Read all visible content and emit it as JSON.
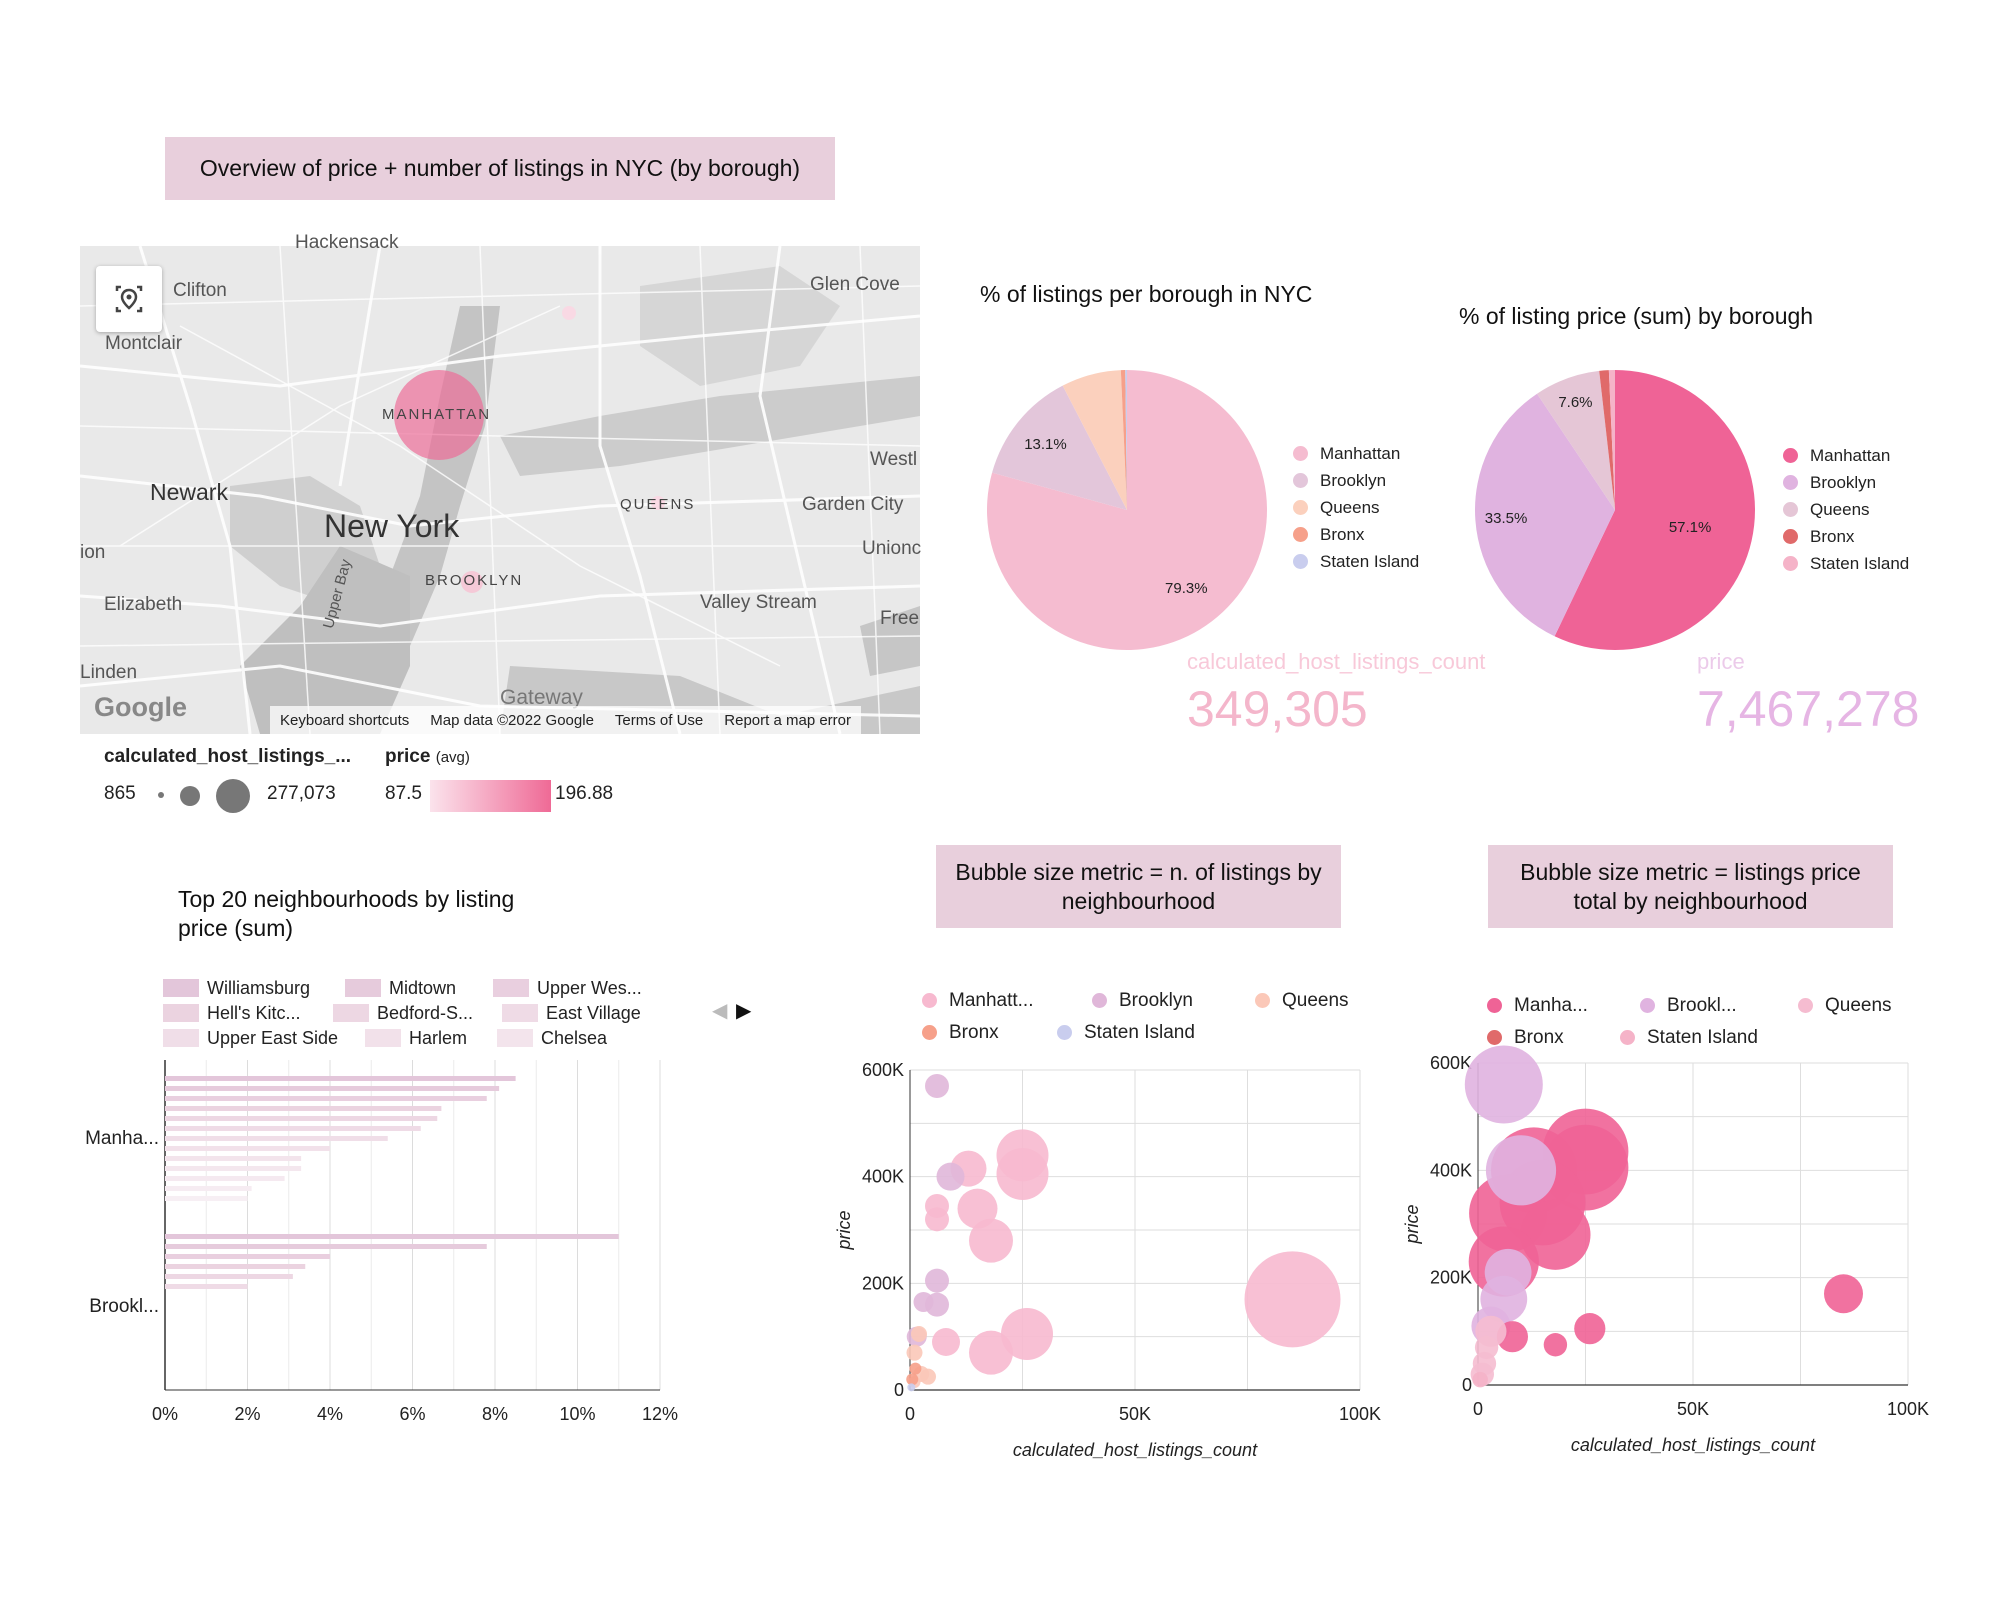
{
  "header": {
    "title": "Overview of price + number of listings in NYC (by borough)"
  },
  "map": {
    "labels": {
      "hackensack": "Hackensack",
      "clifton": "Clifton",
      "glen_cove": "Glen Cove",
      "montclair": "Montclair",
      "manhattan": "MANHATTAN",
      "west": "Westl",
      "newark": "Newark",
      "new_york": "New York",
      "queens": "QUEENS",
      "garden_city": "Garden City",
      "ion": "ion",
      "union": "Unionc",
      "brooklyn": "BROOKLYN",
      "elizabeth": "Elizabeth",
      "upper_bay": "Upper Bay",
      "valley_stream": "Valley Stream",
      "free": "Free",
      "linden": "Linden",
      "gateway": "Gateway"
    },
    "google_logo": "Google",
    "footer": [
      "Keyboard shortcuts",
      "Map data ©2022 Google",
      "Terms of Use",
      "Report a map error"
    ],
    "bubble_legend": {
      "title": "calculated_host_listings_...",
      "min": "865",
      "max": "277,073"
    },
    "color_legend": {
      "title": "price",
      "agg": "(avg)",
      "min": "87.5",
      "max": "196.88"
    },
    "colors": {
      "low": "#fbe3ec",
      "high": "#ef6a96"
    }
  },
  "pie1": {
    "title": "% of listings per borough in NYC",
    "legend": [
      "Manhattan",
      "Brooklyn",
      "Queens",
      "Bronx",
      "Staten Island"
    ],
    "scorecard_label": "calculated_host_listings_count",
    "scorecard_value": "349,305"
  },
  "pie2": {
    "title": "% of listing price (sum) by borough",
    "legend": [
      "Manhattan",
      "Brooklyn",
      "Queens",
      "Bronx",
      "Staten Island"
    ],
    "scorecard_label": "price",
    "scorecard_value": "7,467,278"
  },
  "hbar": {
    "title_line1": "Top 20 neighbourhoods by listing",
    "title_line2": "price (sum)",
    "legend": [
      "Williamsburg",
      "Midtown",
      "Upper Wes...",
      "Hell's Kitc...",
      "Bedford-S...",
      "East Village",
      "Upper East Side",
      "Harlem",
      "Chelsea"
    ],
    "nav_prev": "◀",
    "nav_next": "▶"
  },
  "banner_b1": {
    "line1": "Bubble size metric = n. of listings by",
    "line2": "neighbourhood"
  },
  "banner_b2": {
    "line1": "Bubble size metric = listings price",
    "line2": "total by neighbourhood"
  },
  "bubble1": {
    "legend": [
      "Manhatt...",
      "Brooklyn",
      "Queens",
      "Bronx",
      "Staten Island"
    ],
    "xlabel": "calculated_host_listings_count",
    "ylabel": "price"
  },
  "bubble2": {
    "legend": [
      "Manha...",
      "Brookl...",
      "Queens",
      "Bronx",
      "Staten Island"
    ],
    "xlabel": "calculated_host_listings_count",
    "ylabel": "price"
  },
  "chart_data": [
    {
      "type": "pie",
      "title": "% of listings per borough in NYC",
      "categories": [
        "Manhattan",
        "Brooklyn",
        "Queens",
        "Bronx",
        "Staten Island"
      ],
      "values": [
        79.3,
        13.1,
        6.9,
        0.5,
        0.2
      ],
      "colors": [
        "#f5bcd0",
        "#e3c6da",
        "#fbd0bd",
        "#f6a08a",
        "#c9cdee"
      ],
      "labeled": [
        "79.3%",
        "13.1%",
        "",
        "",
        ""
      ]
    },
    {
      "type": "pie",
      "title": "% of listing price (sum) by borough",
      "categories": [
        "Manhattan",
        "Brooklyn",
        "Queens",
        "Bronx",
        "Staten Island"
      ],
      "values": [
        57.1,
        33.5,
        7.6,
        1.1,
        0.7
      ],
      "colors": [
        "#ef6396",
        "#e0b3e0",
        "#e5c6d6",
        "#e06a6a",
        "#f5b3c8"
      ],
      "labeled": [
        "57.1%",
        "33.5%",
        "7.6%",
        "",
        ""
      ]
    },
    {
      "type": "bar",
      "orientation": "horizontal",
      "title": "Top 20 neighbourhoods by listing price (sum)",
      "categories": [
        "Manha...",
        "Brookl..."
      ],
      "xlim": [
        0,
        12
      ],
      "xticks": [
        "0%",
        "2%",
        "4%",
        "6%",
        "8%",
        "10%",
        "12%"
      ],
      "groups": [
        {
          "category": "Manha...",
          "values": [
            8.5,
            8.1,
            7.8,
            6.7,
            6.6,
            6.2,
            5.4,
            4.0,
            3.3,
            3.3,
            2.9,
            2.1,
            2.0
          ]
        },
        {
          "category": "Brookl...",
          "values": [
            11.0,
            7.8,
            4.0,
            3.4,
            3.1,
            2.0
          ]
        }
      ]
    },
    {
      "type": "scatter",
      "title": "",
      "xlabel": "calculated_host_listings_count",
      "ylabel": "price",
      "xlim": [
        0,
        100000
      ],
      "ylim": [
        0,
        600000
      ],
      "xticks": [
        "0",
        "50K",
        "100K"
      ],
      "yticks": [
        "0",
        "200K",
        "400K",
        "600K"
      ],
      "size_metric": "n. of listings",
      "series": [
        {
          "name": "Manhattan",
          "color": "#f7b9cf",
          "points": [
            [
              85000,
              170000,
              24
            ],
            [
              25000,
              440000,
              13
            ],
            [
              25000,
              405000,
              13
            ],
            [
              26000,
              105000,
              13
            ],
            [
              18000,
              280000,
              11
            ],
            [
              15000,
              340000,
              10
            ],
            [
              13000,
              415000,
              9
            ],
            [
              18000,
              70000,
              11
            ],
            [
              8000,
              90000,
              7
            ],
            [
              6000,
              345000,
              6
            ],
            [
              6000,
              320000,
              6
            ]
          ]
        },
        {
          "name": "Brooklyn",
          "color": "#e0b7d9",
          "points": [
            [
              6000,
              570000,
              6
            ],
            [
              9000,
              400000,
              7
            ],
            [
              6000,
              205000,
              6
            ],
            [
              6000,
              160000,
              6
            ],
            [
              3000,
              165000,
              5
            ],
            [
              1500,
              100000,
              5
            ]
          ]
        },
        {
          "name": "Queens",
          "color": "#fbc8b8",
          "points": [
            [
              2000,
              105000,
              4
            ],
            [
              1000,
              70000,
              4
            ],
            [
              2500,
              30000,
              4
            ],
            [
              4000,
              25000,
              4
            ],
            [
              1000,
              15000,
              3
            ]
          ]
        },
        {
          "name": "Bronx",
          "color": "#f6a08a",
          "points": [
            [
              1200,
              40000,
              3
            ],
            [
              500,
              20000,
              3
            ]
          ]
        },
        {
          "name": "Staten Island",
          "color": "#c9cdee",
          "points": [
            [
              300,
              5000,
              2
            ]
          ]
        }
      ]
    },
    {
      "type": "scatter",
      "title": "",
      "xlabel": "calculated_host_listings_count",
      "ylabel": "price",
      "xlim": [
        0,
        100000
      ],
      "ylim": [
        0,
        600000
      ],
      "xticks": [
        "0",
        "50K",
        "100K"
      ],
      "yticks": [
        "0",
        "200K",
        "400K",
        "600K"
      ],
      "size_metric": "listings price total",
      "series": [
        {
          "name": "Manhattan",
          "color": "#ef6396",
          "points": [
            [
              25000,
              435000,
              11
            ],
            [
              25000,
              405000,
              11
            ],
            [
              13000,
              400000,
              11
            ],
            [
              15000,
              340000,
              11
            ],
            [
              7000,
              320000,
              10
            ],
            [
              18000,
              280000,
              9
            ],
            [
              6000,
              230000,
              9
            ],
            [
              85000,
              170000,
              5
            ],
            [
              26000,
              105000,
              4
            ],
            [
              18000,
              75000,
              3
            ],
            [
              8000,
              90000,
              4
            ]
          ]
        },
        {
          "name": "Brooklyn",
          "color": "#e0b3e0",
          "points": [
            [
              6000,
              560000,
              10
            ],
            [
              10000,
              400000,
              9
            ],
            [
              7000,
              210000,
              6
            ],
            [
              6000,
              160000,
              6
            ],
            [
              3000,
              110000,
              5
            ]
          ]
        },
        {
          "name": "Queens",
          "color": "#f5bcd0",
          "points": [
            [
              3000,
              100000,
              4
            ],
            [
              2000,
              70000,
              3
            ],
            [
              1500,
              40000,
              3
            ],
            [
              1000,
              20000,
              3
            ]
          ]
        },
        {
          "name": "Bronx",
          "color": "#e06a6a",
          "points": []
        },
        {
          "name": "Staten Island",
          "color": "#f5b3c8",
          "points": [
            [
              500,
              10000,
              2
            ]
          ]
        }
      ]
    }
  ]
}
